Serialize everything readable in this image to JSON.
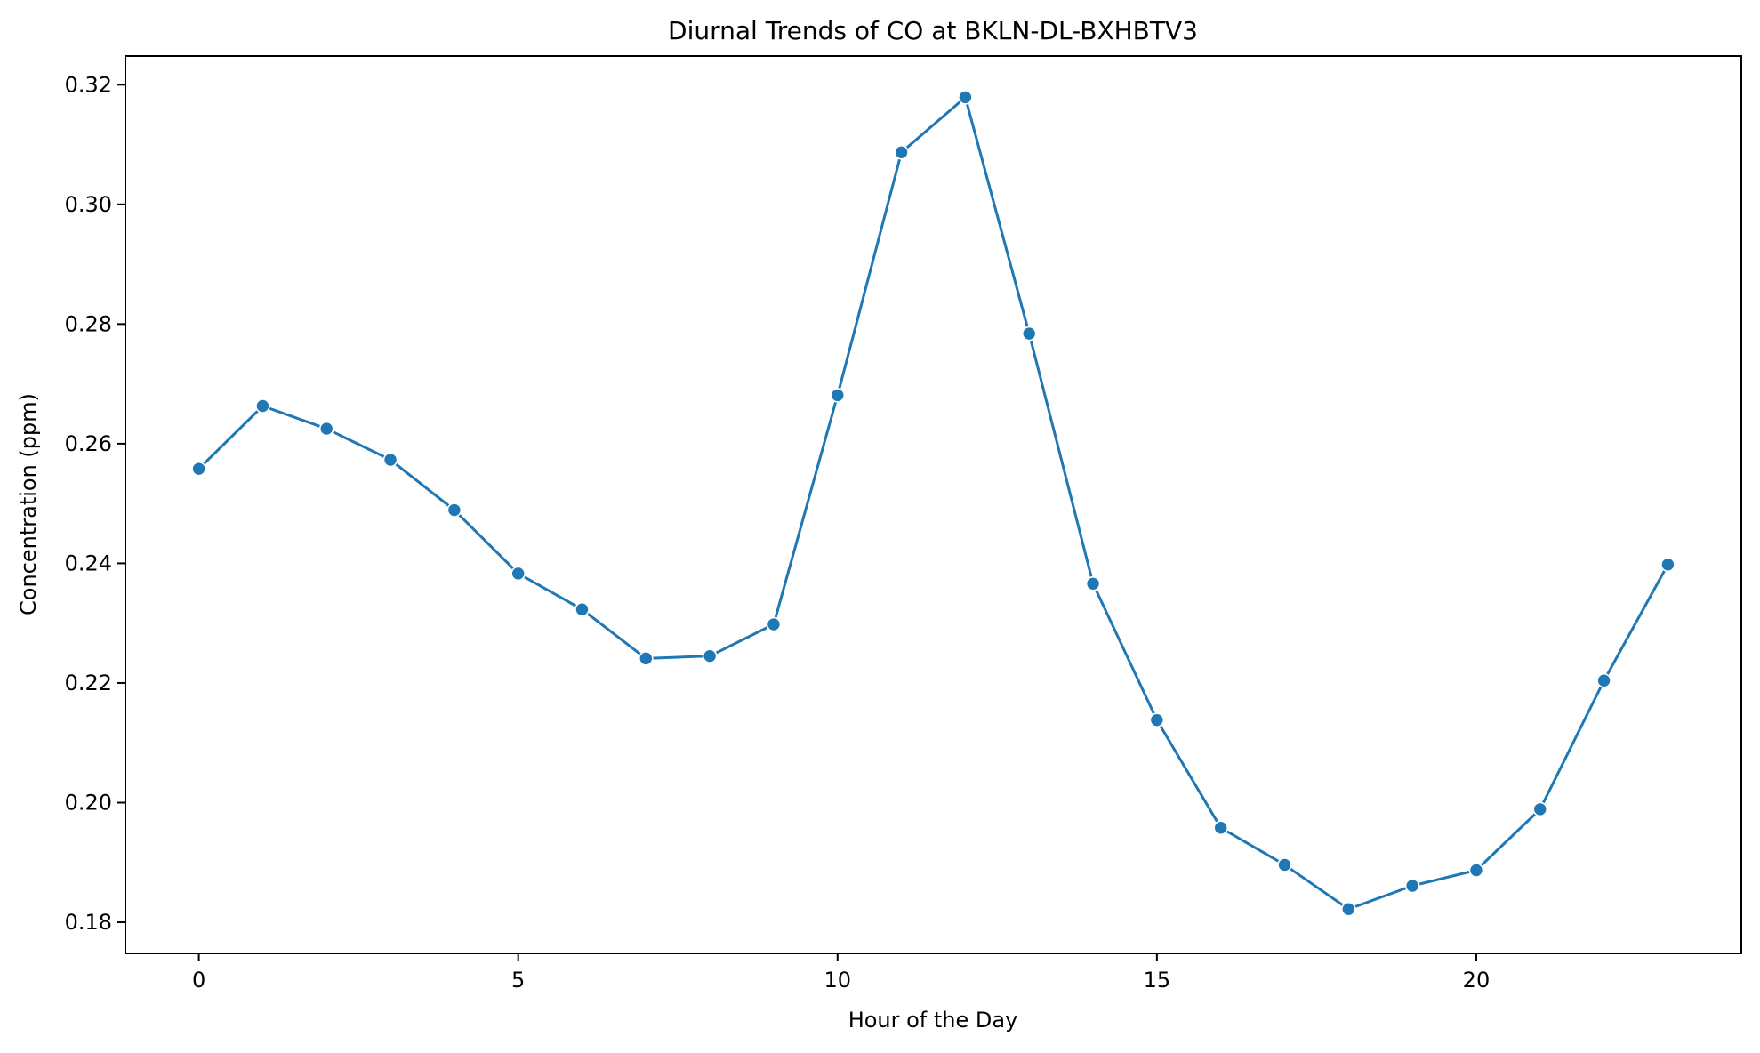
{
  "chart_data": {
    "type": "line",
    "title": "Diurnal Trends of CO at BKLN-DL-BXHBTV3",
    "xlabel": "Hour of the Day",
    "ylabel": "Concentration (ppm)",
    "xlim": [
      -1.15,
      24.15
    ],
    "ylim": [
      0.1748,
      0.3248
    ],
    "x_ticks": [
      0,
      5,
      10,
      15,
      20
    ],
    "x_tick_labels": [
      "0",
      "5",
      "10",
      "15",
      "20"
    ],
    "y_ticks": [
      0.18,
      0.2,
      0.22,
      0.24,
      0.26,
      0.28,
      0.3,
      0.32
    ],
    "y_tick_labels": [
      "0.18",
      "0.20",
      "0.22",
      "0.24",
      "0.26",
      "0.28",
      "0.30",
      "0.32"
    ],
    "grid": false,
    "legend": "none",
    "series": [
      {
        "color": "#1f77b4",
        "marker": "circle",
        "x": [
          0,
          1,
          2,
          3,
          4,
          5,
          6,
          7,
          8,
          9,
          10,
          11,
          12,
          13,
          14,
          15,
          16,
          17,
          18,
          19,
          20,
          21,
          22,
          23
        ],
        "values": [
          0.2558,
          0.2663,
          0.2625,
          0.2573,
          0.2489,
          0.2383,
          0.2323,
          0.2241,
          0.2245,
          0.2298,
          0.2681,
          0.3087,
          0.3179,
          0.2784,
          0.2366,
          0.2138,
          0.1958,
          0.1896,
          0.1822,
          0.1861,
          0.1887,
          0.1989,
          0.2204,
          0.2398
        ]
      }
    ]
  }
}
